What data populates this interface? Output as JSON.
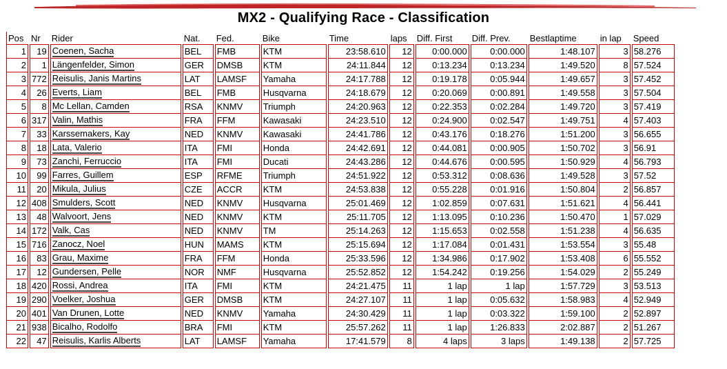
{
  "title": "MX2 - Qualifying Race - Classification",
  "colors": {
    "accent": "#cc0000"
  },
  "columns": [
    "Pos",
    "Nr",
    "Rider",
    "Nat.",
    "Fed.",
    "Bike",
    "Time",
    "laps",
    "Diff. First",
    "Diff. Prev.",
    "Bestlaptime",
    "in lap",
    "Speed"
  ],
  "rows": [
    [
      "1",
      "19",
      "Coenen, Sacha",
      "BEL",
      "FMB",
      "KTM",
      "23:58.610",
      "12",
      "0:00.000",
      "0:00.000",
      "1:48.107",
      "3",
      "58.276"
    ],
    [
      "2",
      "1",
      "Längenfelder, Simon",
      "GER",
      "DMSB",
      "KTM",
      "24:11.844",
      "12",
      "0:13.234",
      "0:13.234",
      "1:49.520",
      "8",
      "57.524"
    ],
    [
      "3",
      "772",
      "Reisulis, Janis Martins",
      "LAT",
      "LAMSF",
      "Yamaha",
      "24:17.788",
      "12",
      "0:19.178",
      "0:05.944",
      "1:49.657",
      "3",
      "57.452"
    ],
    [
      "4",
      "26",
      "Everts, Liam",
      "BEL",
      "FMB",
      "Husqvarna",
      "24:18.679",
      "12",
      "0:20.069",
      "0:00.891",
      "1:49.558",
      "3",
      "57.504"
    ],
    [
      "5",
      "8",
      "Mc Lellan, Camden",
      "RSA",
      "KNMV",
      "Triumph",
      "24:20.963",
      "12",
      "0:22.353",
      "0:02.284",
      "1:49.720",
      "3",
      "57.419"
    ],
    [
      "6",
      "317",
      "Valin, Mathis",
      "FRA",
      "FFM",
      "Kawasaki",
      "24:23.510",
      "12",
      "0:24.900",
      "0:02.547",
      "1:49.751",
      "4",
      "57.403"
    ],
    [
      "7",
      "33",
      "Karssemakers, Kay",
      "NED",
      "KNMV",
      "Kawasaki",
      "24:41.786",
      "12",
      "0:43.176",
      "0:18.276",
      "1:51.200",
      "3",
      "56.655"
    ],
    [
      "8",
      "18",
      "Lata, Valerio",
      "ITA",
      "FMI",
      "Honda",
      "24:42.691",
      "12",
      "0:44.081",
      "0:00.905",
      "1:50.702",
      "3",
      "56.91"
    ],
    [
      "9",
      "73",
      "Zanchi, Ferruccio",
      "ITA",
      "FMI",
      "Ducati",
      "24:43.286",
      "12",
      "0:44.676",
      "0:00.595",
      "1:50.929",
      "4",
      "56.793"
    ],
    [
      "10",
      "99",
      "Farres, Guillem",
      "ESP",
      "RFME",
      "Triumph",
      "24:51.922",
      "12",
      "0:53.312",
      "0:08.636",
      "1:49.528",
      "3",
      "57.52"
    ],
    [
      "11",
      "20",
      "Mikula, Julius",
      "CZE",
      "ACCR",
      "KTM",
      "24:53.838",
      "12",
      "0:55.228",
      "0:01.916",
      "1:50.804",
      "2",
      "56.857"
    ],
    [
      "12",
      "408",
      "Smulders, Scott",
      "NED",
      "KNMV",
      "Husqvarna",
      "25:01.469",
      "12",
      "1:02.859",
      "0:07.631",
      "1:51.621",
      "4",
      "56.441"
    ],
    [
      "13",
      "48",
      "Walvoort, Jens",
      "NED",
      "KNMV",
      "KTM",
      "25:11.705",
      "12",
      "1:13.095",
      "0:10.236",
      "1:50.470",
      "1",
      "57.029"
    ],
    [
      "14",
      "172",
      "Valk, Cas",
      "NED",
      "KNMV",
      "TM",
      "25:14.263",
      "12",
      "1:15.653",
      "0:02.558",
      "1:51.238",
      "4",
      "56.635"
    ],
    [
      "15",
      "716",
      "Zanocz, Noel",
      "HUN",
      "MAMS",
      "KTM",
      "25:15.694",
      "12",
      "1:17.084",
      "0:01.431",
      "1:53.554",
      "3",
      "55.48"
    ],
    [
      "16",
      "83",
      "Grau, Maxime",
      "FRA",
      "FFM",
      "Honda",
      "25:33.596",
      "12",
      "1:34.986",
      "0:17.902",
      "1:53.408",
      "6",
      "55.552"
    ],
    [
      "17",
      "12",
      "Gundersen, Pelle",
      "NOR",
      "NMF",
      "Husqvarna",
      "25:52.852",
      "12",
      "1:54.242",
      "0:19.256",
      "1:54.029",
      "2",
      "55.249"
    ],
    [
      "18",
      "420",
      "Rossi, Andrea",
      "ITA",
      "FMI",
      "KTM",
      "24:21.475",
      "11",
      "1 lap",
      "1 lap",
      "1:57.729",
      "3",
      "53.513"
    ],
    [
      "19",
      "290",
      "Voelker, Joshua",
      "GER",
      "DMSB",
      "KTM",
      "24:27.107",
      "11",
      "1 lap",
      "0:05.632",
      "1:58.983",
      "4",
      "52.949"
    ],
    [
      "20",
      "401",
      "Van Drunen, Lotte",
      "NED",
      "KNMV",
      "Yamaha",
      "24:30.429",
      "11",
      "1 lap",
      "0:03.322",
      "1:59.100",
      "2",
      "52.897"
    ],
    [
      "21",
      "938",
      "Bicalho, Rodolfo",
      "BRA",
      "FMI",
      "KTM",
      "25:57.262",
      "11",
      "1 lap",
      "1:26.833",
      "2:02.887",
      "2",
      "51.267"
    ],
    [
      "22",
      "47",
      "Reisulis, Karlis Alberts",
      "LAT",
      "LAMSF",
      "Yamaha",
      "17:41.579",
      "8",
      "4 laps",
      "3 laps",
      "1:49.138",
      "2",
      "57.725"
    ]
  ]
}
